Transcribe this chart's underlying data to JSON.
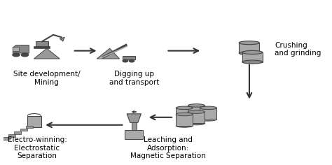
{
  "background_color": "#ffffff",
  "figsize": [
    4.74,
    2.36
  ],
  "dpi": 100,
  "arrow_color": "#333333",
  "text_color": "#000000",
  "text_fontsize": 7.5,
  "icon_color": "#888888",
  "labels": {
    "mining": "Site development/\nMining",
    "digging": "Digging up\nand transport",
    "crushing": "Crushing\nand grinding",
    "leaching": "Leaching and\nAdsorption:\nMagnetic Separation",
    "electro": "Electro-winning:\nElectrostatic\nSeparation"
  }
}
